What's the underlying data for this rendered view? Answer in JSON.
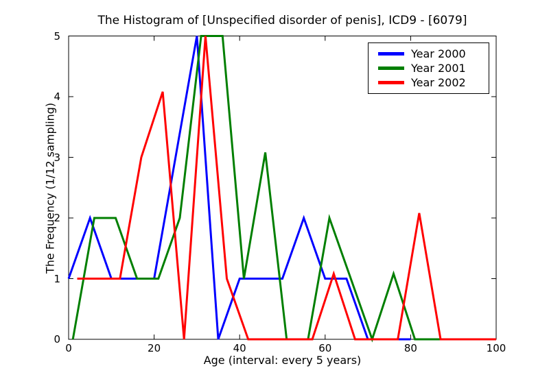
{
  "chart_data": {
    "type": "line",
    "title": "The Histogram of [Unspecified disorder of penis], ICD9 - [6079]",
    "xlabel": "Age (interval: every 5 years)",
    "ylabel": "The Frequency (1/12 sampling)",
    "xlim": [
      0,
      100
    ],
    "ylim": [
      0,
      5
    ],
    "xticks": [
      0,
      20,
      40,
      60,
      80,
      100
    ],
    "yticks": [
      0,
      1,
      2,
      3,
      4,
      5
    ],
    "grid": false,
    "legend_position": "upper right",
    "frame_color": "#000000",
    "background_color": "#ffffff",
    "line_width": 3,
    "series": [
      {
        "name": "Year 2000",
        "color": "#0000ff",
        "points": [
          [
            0,
            1
          ],
          [
            5,
            2
          ],
          [
            10,
            1
          ],
          [
            15,
            1
          ],
          [
            20,
            1
          ],
          [
            25,
            3
          ],
          [
            30,
            5
          ],
          [
            35,
            0
          ],
          [
            40,
            1
          ],
          [
            45,
            1
          ],
          [
            50,
            1
          ],
          [
            55,
            2
          ],
          [
            60,
            1
          ],
          [
            65,
            1
          ],
          [
            70,
            0
          ],
          [
            75,
            0
          ],
          [
            80,
            0
          ]
        ]
      },
      {
        "name": "Year 2001",
        "color": "#007f00",
        "points": [
          [
            1,
            0
          ],
          [
            6,
            2
          ],
          [
            11,
            2
          ],
          [
            16,
            1
          ],
          [
            21,
            1
          ],
          [
            26,
            2
          ],
          [
            31,
            5
          ],
          [
            36,
            5
          ],
          [
            41,
            1
          ],
          [
            46,
            3.08
          ],
          [
            51,
            0
          ],
          [
            56,
            0
          ],
          [
            61,
            2
          ],
          [
            66,
            1
          ],
          [
            71,
            0
          ],
          [
            76,
            1.08
          ],
          [
            81,
            0
          ],
          [
            86,
            0
          ],
          [
            91,
            0
          ],
          [
            96,
            0
          ],
          [
            100,
            0
          ]
        ]
      },
      {
        "name": "Year 2002",
        "color": "#ff0000",
        "points": [
          [
            2,
            1
          ],
          [
            7,
            1
          ],
          [
            12,
            1
          ],
          [
            17,
            3
          ],
          [
            22,
            4.08
          ],
          [
            27,
            0
          ],
          [
            32,
            5
          ],
          [
            37,
            1
          ],
          [
            42,
            0
          ],
          [
            47,
            0
          ],
          [
            52,
            0
          ],
          [
            57,
            0
          ],
          [
            62,
            1.08
          ],
          [
            67,
            0
          ],
          [
            72,
            0
          ],
          [
            77,
            0
          ],
          [
            82,
            2.08
          ],
          [
            87,
            0
          ],
          [
            92,
            0
          ],
          [
            97,
            0
          ],
          [
            100,
            0
          ]
        ]
      }
    ]
  }
}
